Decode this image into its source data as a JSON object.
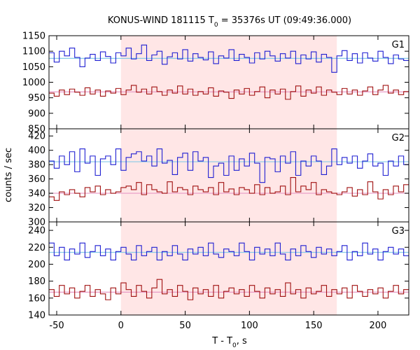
{
  "title": {
    "prefix": "KONUS-WIND 181115 T",
    "subscript": "0",
    "suffix": " = 35376s UT (09:49:36.000)"
  },
  "xlabel": {
    "prefix": "T - T",
    "subscript": "0",
    "suffix": ", s"
  },
  "ylabel": "counts / sec",
  "colors": {
    "highlight": "#ffe6e6",
    "upper_series": "#1f1fd2",
    "lower_series": "#a01010",
    "upper_fit": "#87cbe8",
    "lower_fit": "#e79ac6"
  },
  "chart_data": {
    "type": "line",
    "xlim": [
      -56,
      224
    ],
    "x_ticks": [
      -50,
      0,
      50,
      100,
      150,
      200
    ],
    "highlight_interval": [
      0,
      168
    ],
    "step": 4,
    "x": [
      -56,
      -52,
      -48,
      -44,
      -40,
      -36,
      -32,
      -28,
      -24,
      -20,
      -16,
      -12,
      -8,
      -4,
      0,
      4,
      8,
      12,
      16,
      20,
      24,
      28,
      32,
      36,
      40,
      44,
      48,
      52,
      56,
      60,
      64,
      68,
      72,
      76,
      80,
      84,
      88,
      92,
      96,
      100,
      104,
      108,
      112,
      116,
      120,
      124,
      128,
      132,
      136,
      140,
      144,
      148,
      152,
      156,
      160,
      164,
      168,
      172,
      176,
      180,
      184,
      188,
      192,
      196,
      200,
      204,
      208,
      212,
      216,
      220
    ],
    "panels": [
      {
        "label": "G1",
        "ylim": [
          850,
          1150
        ],
        "y_ticks": [
          850,
          900,
          950,
          1000,
          1050,
          1100,
          1150
        ],
        "series": [
          {
            "role": "upper",
            "fit": 1077,
            "values": [
              1095,
              1065,
              1100,
              1085,
              1110,
              1080,
              1050,
              1078,
              1090,
              1070,
              1098,
              1083,
              1062,
              1095,
              1085,
              1110,
              1075,
              1092,
              1120,
              1070,
              1088,
              1100,
              1058,
              1082,
              1095,
              1075,
              1105,
              1068,
              1092,
              1080,
              1072,
              1098,
              1060,
              1085,
              1078,
              1105,
              1070,
              1090,
              1080,
              1062,
              1095,
              1075,
              1100,
              1085,
              1068,
              1092,
              1078,
              1100,
              1060,
              1088,
              1075,
              1098,
              1065,
              1090,
              1080,
              1032,
              1085,
              1102,
              1070,
              1092,
              1062,
              1095,
              1078,
              1068,
              1100,
              1080,
              1060,
              1088,
              1075,
              1070
            ]
          },
          {
            "role": "lower",
            "fit": 969,
            "values": [
              965,
              955,
              975,
              960,
              978,
              968,
              958,
              982,
              962,
              975,
              955,
              972,
              965,
              980,
              960,
              975,
              990,
              968,
              978,
              962,
              985,
              970,
              958,
              975,
              965,
              988,
              962,
              978,
              958,
              970,
              962,
              982,
              955,
              972,
              968,
              948,
              975,
              962,
              980,
              958,
              970,
              985,
              950,
              975,
              962,
              978,
              945,
              970,
              988,
              955,
              975,
              965,
              985,
              958,
              975,
              968,
              960,
              980,
              962,
              975,
              958,
              972,
              985,
              960,
              975,
              990,
              965,
              975,
              960,
              970
            ]
          }
        ]
      },
      {
        "label": "G2",
        "ylim": [
          300,
          430
        ],
        "y_ticks": [
          300,
          320,
          340,
          360,
          380,
          400,
          420
        ],
        "series": [
          {
            "role": "upper",
            "fit": 384,
            "values": [
              385,
              375,
              392,
              380,
              398,
              370,
              402,
              382,
              392,
              365,
              388,
              392,
              380,
              402,
              372,
              390,
              395,
              398,
              385,
              392,
              378,
              402,
              382,
              386,
              366,
              390,
              396,
              372,
              398,
              385,
              390,
              362,
              378,
              382,
              365,
              392,
              372,
              388,
              378,
              396,
              382,
              355,
              390,
              388,
              370,
              392,
              382,
              398,
              365,
              385,
              378,
              392,
              385,
              366,
              378,
              402,
              380,
              390,
              382,
              392,
              375,
              385,
              395,
              378,
              382,
              365,
              385,
              378,
              392,
              380
            ]
          },
          {
            "role": "lower",
            "fit": 340,
            "values": [
              335,
              330,
              342,
              338,
              345,
              340,
              335,
              348,
              342,
              350,
              338,
              345,
              340,
              342,
              348,
              350,
              345,
              355,
              338,
              352,
              345,
              342,
              340,
              356,
              342,
              348,
              345,
              338,
              350,
              345,
              342,
              348,
              338,
              355,
              342,
              346,
              338,
              348,
              345,
              340,
              352,
              338,
              348,
              340,
              342,
              350,
              338,
              362,
              342,
              350,
              345,
              355,
              338,
              345,
              342,
              340,
              338,
              342,
              348,
              336,
              345,
              338,
              356,
              342,
              332,
              345,
              338,
              350,
              342,
              352
            ]
          }
        ]
      },
      {
        "label": "G3",
        "ylim": [
          140,
          250
        ],
        "y_ticks": [
          140,
          160,
          180,
          200,
          220,
          240
        ],
        "series": [
          {
            "role": "upper",
            "fit": 214,
            "values": [
              225,
              210,
              220,
              205,
              218,
              212,
              225,
              208,
              215,
              222,
              210,
              218,
              205,
              215,
              220,
              212,
              205,
              222,
              210,
              215,
              220,
              205,
              215,
              210,
              222,
              212,
              205,
              218,
              212,
              220,
              210,
              225,
              212,
              208,
              218,
              215,
              210,
              225,
              215,
              205,
              220,
              212,
              218,
              210,
              225,
              212,
              205,
              218,
              210,
              222,
              215,
              208,
              220,
              212,
              218,
              210,
              215,
              222,
              205,
              215,
              210,
              225,
              212,
              218,
              205,
              215,
              220,
              212,
              218,
              210
            ]
          },
          {
            "role": "lower",
            "fit": 167,
            "values": [
              170,
              162,
              175,
              165,
              172,
              160,
              168,
              175,
              162,
              170,
              165,
              158,
              172,
              165,
              178,
              170,
              162,
              175,
              168,
              160,
              172,
              182,
              165,
              170,
              162,
              175,
              168,
              158,
              172,
              165,
              170,
              162,
              175,
              160,
              168,
              172,
              165,
              170,
              162,
              175,
              168,
              160,
              172,
              165,
              170,
              162,
              178,
              165,
              170,
              160,
              172,
              165,
              168,
              175,
              162,
              170,
              165,
              172,
              160,
              175,
              168,
              162,
              170,
              165,
              172,
              160,
              168,
              175,
              165,
              170
            ]
          }
        ]
      }
    ]
  }
}
